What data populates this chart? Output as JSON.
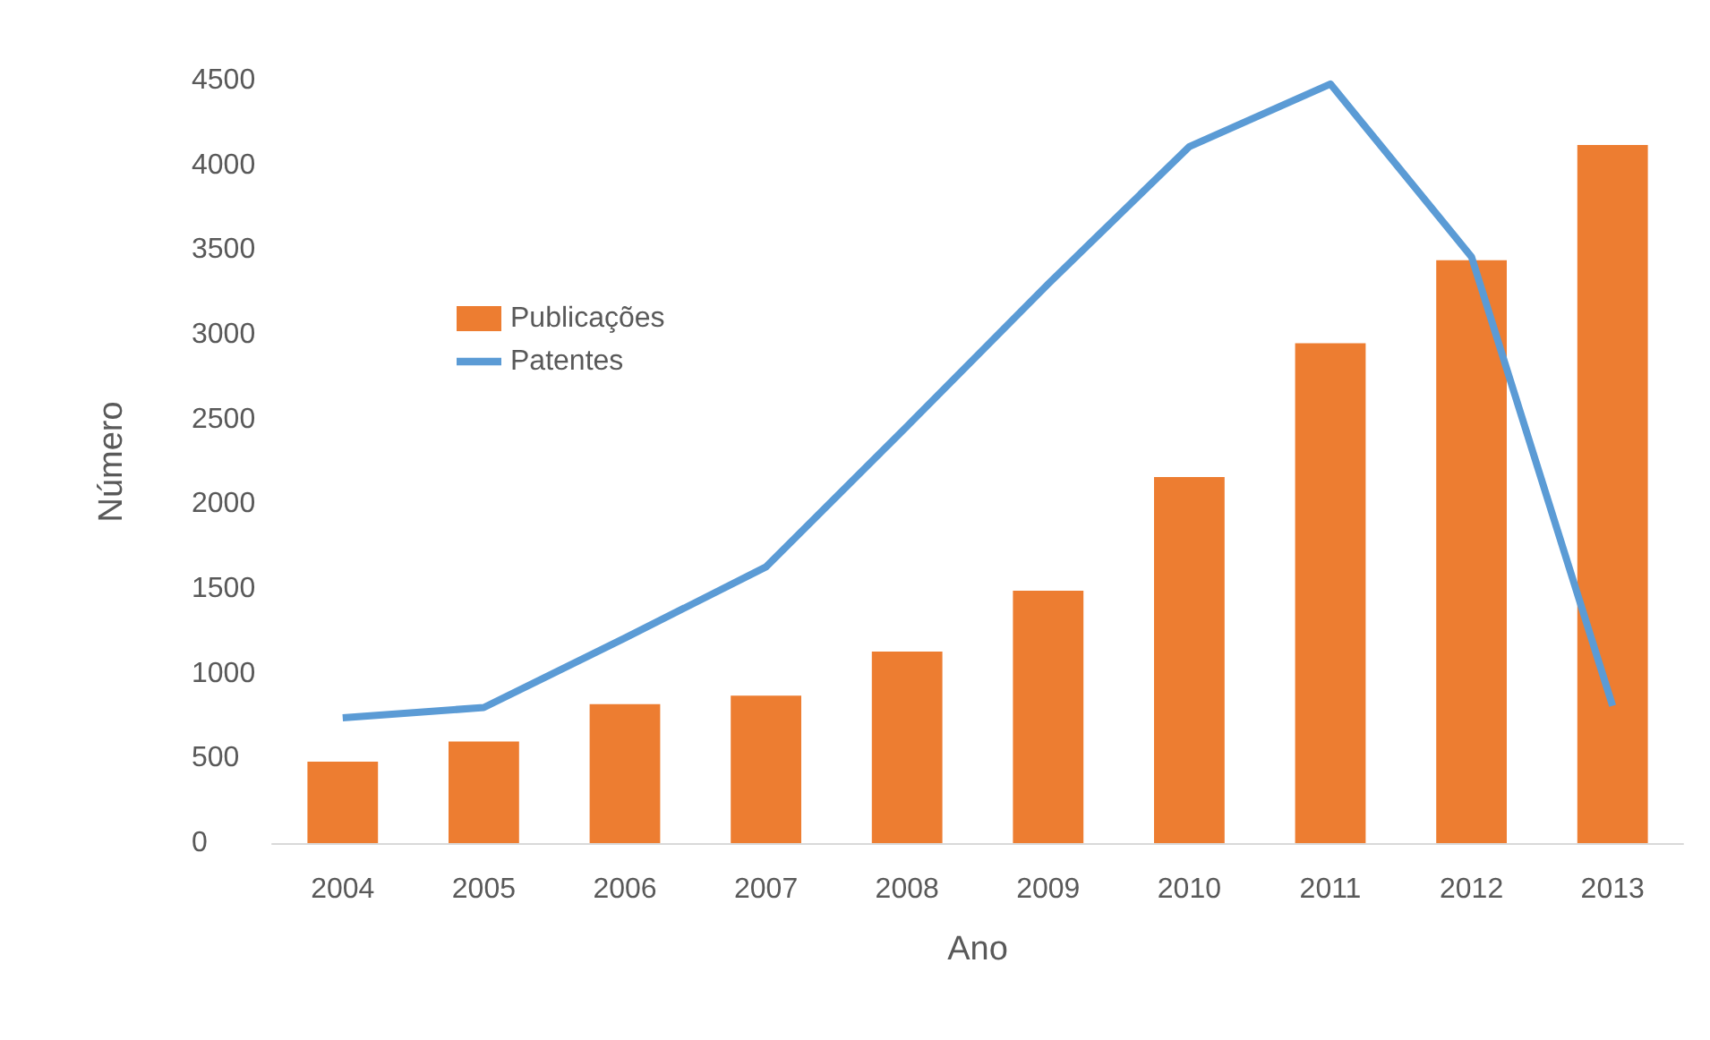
{
  "chart_data": {
    "type": "bar",
    "xlabel": "Ano",
    "ylabel": "Número",
    "categories": [
      "2004",
      "2005",
      "2006",
      "2007",
      "2008",
      "2009",
      "2010",
      "2011",
      "2012",
      "2013"
    ],
    "series": [
      {
        "name": "Publicações",
        "color": "#ed7d31",
        "values": [
          480,
          600,
          820,
          870,
          1130,
          1490,
          2160,
          2950,
          3440,
          4120
        ]
      },
      {
        "name": "Patentes",
        "type": "line",
        "color": "#5b9bd5",
        "values": [
          740,
          800,
          1210,
          1630,
          2460,
          3300,
          4110,
          4480,
          3460,
          810
        ]
      }
    ],
    "ylim": [
      0,
      4500
    ],
    "yticks": [
      0,
      500,
      1000,
      1500,
      2000,
      2500,
      3000,
      3500,
      4000,
      4500
    ],
    "grid": false,
    "legend": "top left",
    "marker": "none",
    "line_style": "solid"
  }
}
